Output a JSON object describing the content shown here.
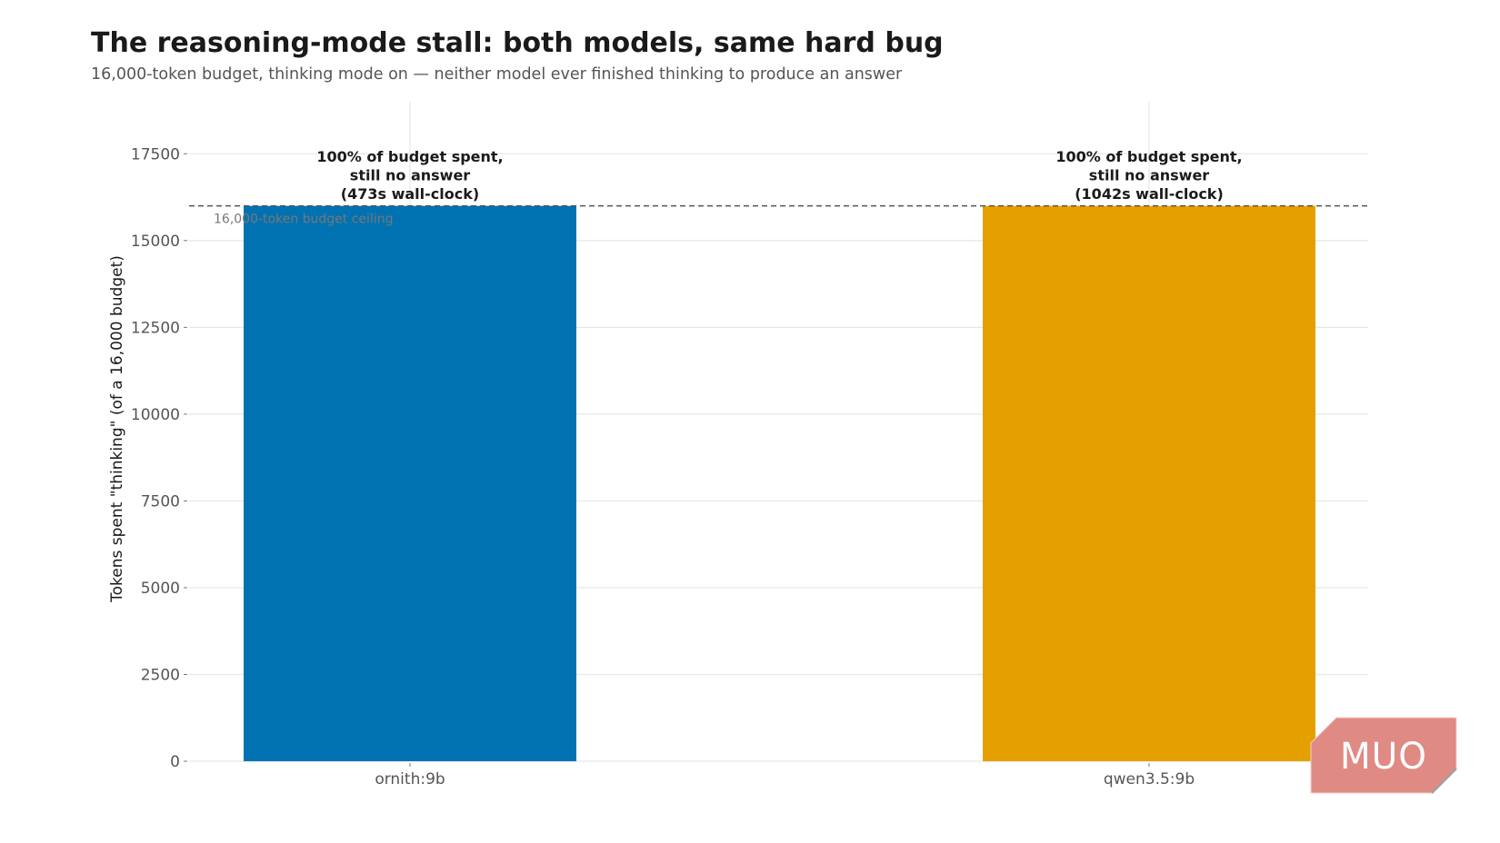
{
  "chart_data": {
    "type": "bar",
    "title": "The reasoning-mode stall: both models, same hard bug",
    "subtitle": "16,000-token budget, thinking mode on — neither model ever finished thinking to produce an answer",
    "ylabel": "Tokens spent \"thinking\" (of a 16,000 budget)",
    "xlabel": "",
    "categories": [
      "ornith:9b",
      "qwen3.5:9b"
    ],
    "values": [
      16000,
      16000
    ],
    "colors": [
      "#0072b2",
      "#e5a000"
    ],
    "ylim": [
      0,
      19000
    ],
    "yticks": [
      0,
      2500,
      5000,
      7500,
      10000,
      12500,
      15000,
      17500
    ],
    "ytick_labels": [
      "0",
      "2500",
      "5000",
      "7500",
      "10000",
      "12500",
      "15000",
      "17500"
    ],
    "grid": true,
    "reference_line": {
      "value": 16000,
      "label": "16,000-token budget ceiling",
      "style": "dashed"
    },
    "annotations": [
      {
        "category": "ornith:9b",
        "lines": [
          "100% of budget spent,",
          "still no answer",
          "(473s wall-clock)"
        ]
      },
      {
        "category": "qwen3.5:9b",
        "lines": [
          "100% of budget spent,",
          "still no answer",
          "(1042s wall-clock)"
        ]
      }
    ]
  },
  "watermark": {
    "text": "MUO",
    "color": "#e08a84"
  }
}
